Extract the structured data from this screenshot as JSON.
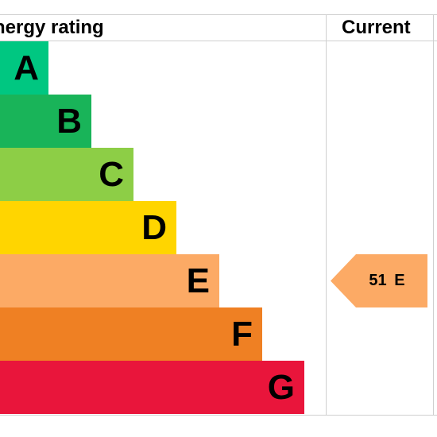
{
  "header": {
    "rating_label": "Energy rating",
    "current_label": "Current"
  },
  "bands": [
    {
      "letter": "A",
      "color": "#00c781"
    },
    {
      "letter": "B",
      "color": "#19b459"
    },
    {
      "letter": "C",
      "color": "#8dce46"
    },
    {
      "letter": "D",
      "color": "#ffd500"
    },
    {
      "letter": "E",
      "color": "#fcaa65"
    },
    {
      "letter": "F",
      "color": "#ef8023"
    },
    {
      "letter": "G",
      "color": "#e9153b"
    }
  ],
  "current": {
    "value": "51",
    "band": "E",
    "text": "51 E",
    "color": "#fcaa65"
  }
}
